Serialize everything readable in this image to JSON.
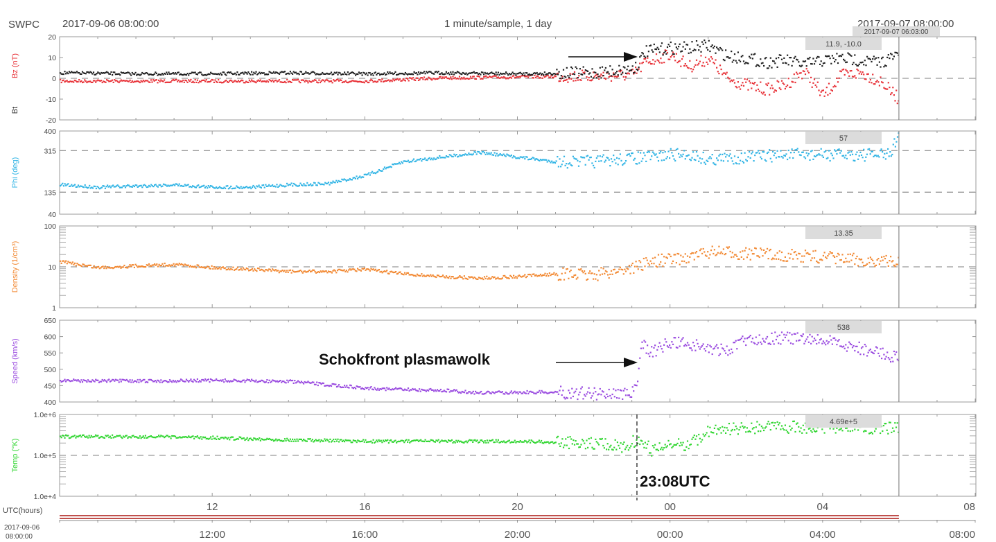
{
  "header": {
    "org": "SWPC",
    "start_time": "2017-09-06 08:00:00",
    "sampling": "1 minute/sample, 1 day",
    "end_time": "2017-09-07 08:00:00",
    "cursor_time": "2017-09-07 06:03:00"
  },
  "annotations": {
    "shock_label": "Schokfront plasmawolk",
    "shock_time": "23:08UTC"
  },
  "x_axis": {
    "label": "UTC(hours)",
    "start_date": "2017-09-06",
    "start_clock": "08:00:00",
    "hour_ticks": [
      "12",
      "16",
      "20",
      "00",
      "04",
      "08"
    ],
    "clock_ticks": [
      "12:00",
      "16:00",
      "20:00",
      "00:00",
      "04:00",
      "08:00"
    ]
  },
  "chart_data": [
    {
      "type": "scatter",
      "panel": "magnetic field",
      "ylabel_series": [
        "Bz (nT)",
        "Bt"
      ],
      "ylabel_colors": [
        "#e8343a",
        "#333333"
      ],
      "y_ticks": [
        "20",
        "10",
        "0",
        "-10",
        "-20"
      ],
      "ylim": [
        -20,
        20
      ],
      "readout": "11.9, -10.0",
      "grid": "dashed line at 0",
      "series": [
        {
          "name": "Bz (nT)",
          "color": "#e8343a",
          "x": [
            "08:00",
            "10:00",
            "12:00",
            "14:00",
            "16:00",
            "18:00",
            "20:00",
            "22:00",
            "23:00",
            "23:08",
            "23:20",
            "00:00",
            "00:30",
            "01:00",
            "01:30",
            "02:00",
            "02:30",
            "03:00",
            "03:30",
            "04:00",
            "04:30",
            "05:00",
            "05:30",
            "06:00"
          ],
          "values": [
            -1,
            -1,
            -1,
            -1,
            -1,
            0.5,
            1,
            1.5,
            2,
            4,
            8,
            12,
            6,
            10,
            0,
            -3,
            -5,
            -3,
            4,
            -8,
            2,
            3,
            -1,
            -10
          ]
        },
        {
          "name": "Bt",
          "color": "#222222",
          "x": [
            "08:00",
            "10:00",
            "12:00",
            "14:00",
            "16:00",
            "18:00",
            "20:00",
            "22:00",
            "23:00",
            "23:08",
            "23:20",
            "00:00",
            "00:30",
            "01:00",
            "01:30",
            "02:00",
            "02:30",
            "03:00",
            "03:30",
            "04:00",
            "04:30",
            "05:00",
            "05:30",
            "06:00"
          ],
          "values": [
            3,
            2.5,
            2.5,
            3,
            2.5,
            3,
            2.5,
            3,
            5,
            7,
            13,
            15,
            15,
            16,
            11,
            10,
            8,
            9,
            7,
            9,
            10,
            9,
            8,
            12
          ]
        }
      ]
    },
    {
      "type": "scatter",
      "panel": "phi",
      "ylabel": "Phi (deg)",
      "ylabel_colors": [
        "#33b5e5"
      ],
      "y_ticks": [
        "400",
        "315",
        "135",
        "40"
      ],
      "ylim": [
        40,
        400
      ],
      "readout": "57",
      "grid": "dashed lines at 315 and 135",
      "series": [
        {
          "name": "Phi (deg)",
          "color": "#33b5e5",
          "x": [
            "08:00",
            "09:00",
            "10:00",
            "11:00",
            "12:00",
            "13:00",
            "14:00",
            "15:00",
            "16:00",
            "17:00",
            "18:00",
            "19:00",
            "20:00",
            "21:00",
            "22:00",
            "23:00",
            "23:30",
            "00:00",
            "00:30",
            "01:00",
            "02:00",
            "03:00",
            "04:00",
            "05:00",
            "05:45",
            "06:00"
          ],
          "values": [
            170,
            160,
            165,
            170,
            160,
            160,
            170,
            175,
            210,
            270,
            290,
            310,
            290,
            270,
            270,
            285,
            290,
            300,
            300,
            280,
            290,
            300,
            300,
            300,
            300,
            400
          ]
        }
      ]
    },
    {
      "type": "scatter",
      "panel": "density",
      "ylabel": "Density (1/cm³)",
      "ylabel_colors": [
        "#f28a35"
      ],
      "y_ticks": [
        "100",
        "10",
        "1"
      ],
      "ylim": [
        1,
        100
      ],
      "scale": "log",
      "readout": "13.35",
      "grid": "dashed line at 10",
      "series": [
        {
          "name": "Density (1/cm³)",
          "color": "#f28a35",
          "x": [
            "08:00",
            "09:00",
            "10:00",
            "11:00",
            "12:00",
            "13:00",
            "14:00",
            "15:00",
            "16:00",
            "17:00",
            "18:00",
            "19:00",
            "20:00",
            "21:00",
            "22:00",
            "23:00",
            "23:30",
            "00:00",
            "00:30",
            "01:00",
            "02:00",
            "03:00",
            "04:00",
            "05:00",
            "06:00"
          ],
          "values": [
            14,
            10,
            11,
            12,
            10,
            9,
            8,
            8,
            9,
            7,
            6,
            5.5,
            6,
            7,
            6.5,
            10,
            14,
            16,
            18,
            24,
            22,
            20,
            18,
            15,
            13.5
          ]
        }
      ]
    },
    {
      "type": "scatter",
      "panel": "speed",
      "ylabel": "Speed (km/s)",
      "ylabel_colors": [
        "#9b4de0"
      ],
      "y_ticks": [
        "650",
        "600",
        "550",
        "500",
        "450",
        "400"
      ],
      "ylim": [
        400,
        650
      ],
      "readout": "538",
      "series": [
        {
          "name": "Speed (km/s)",
          "color": "#9b4de0",
          "x": [
            "08:00",
            "10:00",
            "12:00",
            "14:00",
            "16:00",
            "17:00",
            "18:00",
            "19:00",
            "20:00",
            "21:00",
            "22:00",
            "23:00",
            "23:08",
            "23:15",
            "23:30",
            "00:00",
            "00:30",
            "01:00",
            "01:30",
            "02:00",
            "03:00",
            "04:00",
            "05:00",
            "06:00"
          ],
          "values": [
            468,
            466,
            468,
            465,
            445,
            440,
            438,
            430,
            432,
            432,
            428,
            430,
            460,
            580,
            555,
            585,
            580,
            565,
            560,
            595,
            598,
            590,
            565,
            538
          ]
        }
      ]
    },
    {
      "type": "scatter",
      "panel": "temperature",
      "ylabel": "Temp (°K)",
      "ylabel_colors": [
        "#33d633"
      ],
      "y_ticks": [
        "1.0e+6",
        "1.0e+5",
        "1.0e+4"
      ],
      "ylim": [
        10000,
        1000000
      ],
      "scale": "log",
      "readout": "4.69e+5",
      "grid": "dashed line at 1.0e+5",
      "series": [
        {
          "name": "Temp (°K)",
          "color": "#33d633",
          "x": [
            "08:00",
            "10:00",
            "12:00",
            "14:00",
            "16:00",
            "18:00",
            "20:00",
            "22:00",
            "22:50",
            "23:08",
            "23:30",
            "00:00",
            "00:30",
            "01:00",
            "02:00",
            "03:00",
            "04:00",
            "05:00",
            "05:40",
            "06:00"
          ],
          "values": [
            300000,
            300000,
            280000,
            250000,
            230000,
            230000,
            230000,
            210000,
            160000,
            280000,
            140000,
            180000,
            200000,
            400000,
            500000,
            520000,
            520000,
            520000,
            480000,
            460000
          ]
        }
      ]
    }
  ]
}
